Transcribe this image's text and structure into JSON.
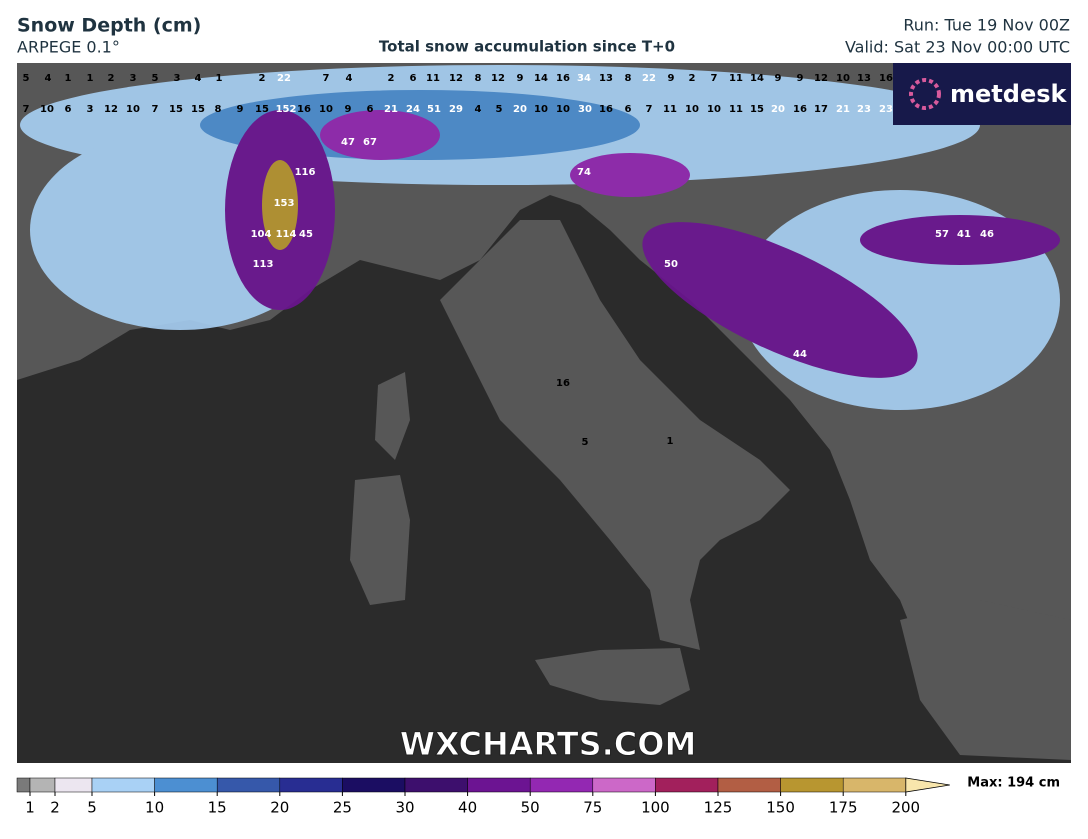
{
  "header": {
    "title": "Snow Depth (cm)",
    "model": "ARPEGE 0.1°",
    "center_title": "Total snow accumulation since T+0",
    "run": "Run: Tue 19 Nov 00Z",
    "valid": "Valid: Sat 23 Nov 00:00 UTC"
  },
  "logo": "metdesk",
  "watermark": "WXCHARTS.COM",
  "legend": {
    "ticks": [
      1,
      2,
      5,
      10,
      15,
      20,
      25,
      30,
      40,
      50,
      75,
      100,
      125,
      150,
      175,
      200
    ],
    "colors": [
      "#7a7a7a",
      "#b4b4b4",
      "#ece6f0",
      "#a9d1f5",
      "#4c8fd2",
      "#3658aa",
      "#282d92",
      "#1b0d62",
      "#3d0f6d",
      "#6c1492",
      "#9328b2",
      "#cc68c8",
      "#a2205c",
      "#b25e44",
      "#b89630",
      "#d8b66a",
      "#f8e6ac"
    ],
    "max": "Max: 194 cm"
  },
  "map_labels": [
    5,
    4,
    1,
    1,
    2,
    3,
    5,
    3,
    4,
    1,
    2,
    22,
    7,
    4,
    2,
    6,
    11,
    12,
    8,
    12,
    9,
    14,
    16,
    34,
    13,
    8,
    22,
    9,
    2,
    7,
    11,
    14,
    9,
    9,
    12,
    10,
    13,
    16,
    7,
    10,
    6,
    3,
    12,
    10,
    7,
    15,
    15,
    8,
    9,
    15,
    152,
    16,
    10,
    9,
    6,
    21,
    24,
    51,
    29,
    4,
    5,
    20,
    10,
    10,
    30,
    16,
    6,
    7,
    11,
    10,
    10,
    11,
    15,
    20,
    16,
    17,
    21,
    23,
    23,
    153,
    116,
    113,
    104,
    114,
    74,
    57,
    41,
    46,
    44,
    50,
    16,
    5,
    1,
    67,
    47,
    45
  ]
}
